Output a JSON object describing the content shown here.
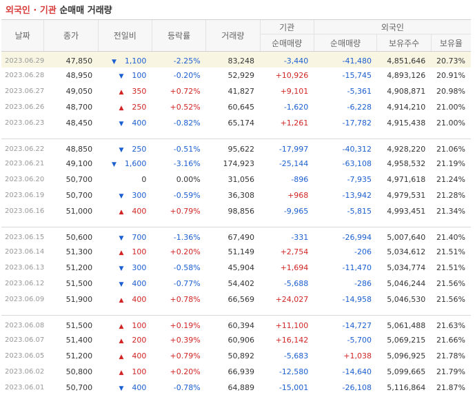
{
  "title": {
    "part1": "외국인 · 기관",
    "part2": "순매매 거래량"
  },
  "headers": {
    "date": "날짜",
    "close": "종가",
    "change": "전일비",
    "rate": "등락률",
    "volume": "거래량",
    "inst_group": "기관",
    "inst_net": "순매매량",
    "foreign_group": "외국인",
    "foreign_net": "순매매량",
    "foreign_shares": "보유주수",
    "foreign_ratio": "보유율"
  },
  "groups": [
    [
      {
        "date": "2023.06.29",
        "close": "47,850",
        "dir": "down",
        "change": "1,100",
        "rate": "-2.25%",
        "volume": "83,248",
        "inst": "-3,440",
        "foreign": "-41,480",
        "shares": "4,851,646",
        "ratio": "20.73%"
      },
      {
        "date": "2023.06.28",
        "close": "48,950",
        "dir": "down",
        "change": "100",
        "rate": "-0.20%",
        "volume": "52,929",
        "inst": "+10,926",
        "foreign": "-15,745",
        "shares": "4,893,126",
        "ratio": "20.91%"
      },
      {
        "date": "2023.06.27",
        "close": "49,050",
        "dir": "up",
        "change": "350",
        "rate": "+0.72%",
        "volume": "41,827",
        "inst": "+9,101",
        "foreign": "-5,361",
        "shares": "4,908,871",
        "ratio": "20.98%"
      },
      {
        "date": "2023.06.26",
        "close": "48,700",
        "dir": "up",
        "change": "250",
        "rate": "+0.52%",
        "volume": "60,645",
        "inst": "-1,620",
        "foreign": "-6,228",
        "shares": "4,914,210",
        "ratio": "21.00%"
      },
      {
        "date": "2023.06.23",
        "close": "48,450",
        "dir": "down",
        "change": "400",
        "rate": "-0.82%",
        "volume": "65,174",
        "inst": "+1,261",
        "foreign": "-17,782",
        "shares": "4,915,438",
        "ratio": "21.00%"
      }
    ],
    [
      {
        "date": "2023.06.22",
        "close": "48,850",
        "dir": "down",
        "change": "250",
        "rate": "-0.51%",
        "volume": "95,622",
        "inst": "-17,997",
        "foreign": "-40,312",
        "shares": "4,928,220",
        "ratio": "21.06%"
      },
      {
        "date": "2023.06.21",
        "close": "49,100",
        "dir": "down",
        "change": "1,600",
        "rate": "-3.16%",
        "volume": "174,923",
        "inst": "-25,144",
        "foreign": "-63,108",
        "shares": "4,958,532",
        "ratio": "21.19%"
      },
      {
        "date": "2023.06.20",
        "close": "50,700",
        "dir": "flat",
        "change": "0",
        "rate": "0.00%",
        "volume": "31,056",
        "inst": "-896",
        "foreign": "-7,935",
        "shares": "4,971,618",
        "ratio": "21.24%"
      },
      {
        "date": "2023.06.19",
        "close": "50,700",
        "dir": "down",
        "change": "300",
        "rate": "-0.59%",
        "volume": "36,308",
        "inst": "+968",
        "foreign": "-13,942",
        "shares": "4,979,531",
        "ratio": "21.28%"
      },
      {
        "date": "2023.06.16",
        "close": "51,000",
        "dir": "up",
        "change": "400",
        "rate": "+0.79%",
        "volume": "98,856",
        "inst": "-9,965",
        "foreign": "-5,815",
        "shares": "4,993,451",
        "ratio": "21.34%"
      }
    ],
    [
      {
        "date": "2023.06.15",
        "close": "50,600",
        "dir": "down",
        "change": "700",
        "rate": "-1.36%",
        "volume": "67,490",
        "inst": "-331",
        "foreign": "-26,994",
        "shares": "5,007,640",
        "ratio": "21.40%"
      },
      {
        "date": "2023.06.14",
        "close": "51,300",
        "dir": "up",
        "change": "100",
        "rate": "+0.20%",
        "volume": "51,149",
        "inst": "+2,754",
        "foreign": "-206",
        "shares": "5,034,612",
        "ratio": "21.51%"
      },
      {
        "date": "2023.06.13",
        "close": "51,200",
        "dir": "down",
        "change": "300",
        "rate": "-0.58%",
        "volume": "45,904",
        "inst": "+1,694",
        "foreign": "-11,470",
        "shares": "5,034,774",
        "ratio": "21.51%"
      },
      {
        "date": "2023.06.12",
        "close": "51,500",
        "dir": "down",
        "change": "400",
        "rate": "-0.77%",
        "volume": "54,402",
        "inst": "-5,688",
        "foreign": "-286",
        "shares": "5,046,244",
        "ratio": "21.56%"
      },
      {
        "date": "2023.06.09",
        "close": "51,900",
        "dir": "up",
        "change": "400",
        "rate": "+0.78%",
        "volume": "66,569",
        "inst": "+24,027",
        "foreign": "-14,958",
        "shares": "5,046,530",
        "ratio": "21.56%"
      }
    ],
    [
      {
        "date": "2023.06.08",
        "close": "51,500",
        "dir": "up",
        "change": "100",
        "rate": "+0.19%",
        "volume": "60,394",
        "inst": "+11,100",
        "foreign": "-14,727",
        "shares": "5,061,488",
        "ratio": "21.63%"
      },
      {
        "date": "2023.06.07",
        "close": "51,400",
        "dir": "up",
        "change": "200",
        "rate": "+0.39%",
        "volume": "60,906",
        "inst": "+16,142",
        "foreign": "-5,700",
        "shares": "5,069,215",
        "ratio": "21.66%"
      },
      {
        "date": "2023.06.05",
        "close": "51,200",
        "dir": "up",
        "change": "400",
        "rate": "+0.79%",
        "volume": "50,892",
        "inst": "-5,683",
        "foreign": "+1,038",
        "shares": "5,096,925",
        "ratio": "21.78%"
      },
      {
        "date": "2023.06.02",
        "close": "50,800",
        "dir": "up",
        "change": "100",
        "rate": "+0.20%",
        "volume": "66,939",
        "inst": "-12,580",
        "foreign": "-14,640",
        "shares": "5,099,665",
        "ratio": "21.79%"
      },
      {
        "date": "2023.06.01",
        "close": "50,700",
        "dir": "down",
        "change": "400",
        "rate": "-0.78%",
        "volume": "64,889",
        "inst": "-15,001",
        "foreign": "-26,108",
        "shares": "5,116,864",
        "ratio": "21.87%"
      }
    ]
  ],
  "colors": {
    "up": "#d22424",
    "down": "#1c5fd1",
    "highlight": "#f8f6e3"
  }
}
